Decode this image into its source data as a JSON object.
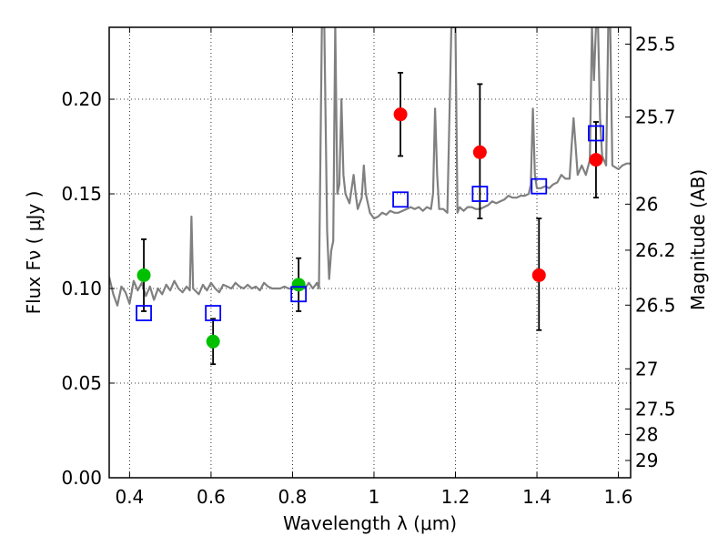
{
  "chart_data": {
    "type": "scatter",
    "xlabel": "Wavelength  λ (μm)",
    "ylabel": "Flux  Fν  ( μJy )",
    "ylabel_right": "Magnitude (AB)",
    "xlim": [
      0.35,
      1.63
    ],
    "ylim": [
      0.0,
      0.238
    ],
    "grid": true,
    "x_ticks": [
      {
        "value": 0.4,
        "label": "0.4"
      },
      {
        "value": 0.6,
        "label": "0.6"
      },
      {
        "value": 0.8,
        "label": "0.8"
      },
      {
        "value": 1.0,
        "label": "1"
      },
      {
        "value": 1.2,
        "label": "1.2"
      },
      {
        "value": 1.4,
        "label": "1.4"
      },
      {
        "value": 1.6,
        "label": "1.6"
      }
    ],
    "y_ticks": [
      {
        "value": 0.0,
        "label": "0.00"
      },
      {
        "value": 0.05,
        "label": "0.05"
      },
      {
        "value": 0.1,
        "label": "0.10"
      },
      {
        "value": 0.15,
        "label": "0.15"
      },
      {
        "value": 0.2,
        "label": "0.20"
      }
    ],
    "mag_ticks": [
      {
        "value": 25.5,
        "label": "25.5"
      },
      {
        "value": 25.7,
        "label": "25.7"
      },
      {
        "value": 26.0,
        "label": "26"
      },
      {
        "value": 26.2,
        "label": "26.2"
      },
      {
        "value": 26.5,
        "label": "26.5"
      },
      {
        "value": 27.0,
        "label": "27"
      },
      {
        "value": 27.5,
        "label": "27.5"
      },
      {
        "value": 28.0,
        "label": "28"
      },
      {
        "value": 29.0,
        "label": "29"
      }
    ],
    "series": [
      {
        "kind": "line",
        "color": "#808080",
        "points": [
          [
            0.35,
            0.106
          ],
          [
            0.36,
            0.097
          ],
          [
            0.37,
            0.091
          ],
          [
            0.38,
            0.101
          ],
          [
            0.39,
            0.098
          ],
          [
            0.4,
            0.092
          ],
          [
            0.41,
            0.104
          ],
          [
            0.42,
            0.099
          ],
          [
            0.43,
            0.103
          ],
          [
            0.44,
            0.096
          ],
          [
            0.45,
            0.101
          ],
          [
            0.46,
            0.094
          ],
          [
            0.47,
            0.1
          ],
          [
            0.48,
            0.097
          ],
          [
            0.49,
            0.102
          ],
          [
            0.5,
            0.099
          ],
          [
            0.51,
            0.104
          ],
          [
            0.52,
            0.1
          ],
          [
            0.53,
            0.098
          ],
          [
            0.54,
            0.101
          ],
          [
            0.548,
            0.099
          ],
          [
            0.552,
            0.138
          ],
          [
            0.556,
            0.1
          ],
          [
            0.57,
            0.097
          ],
          [
            0.58,
            0.102
          ],
          [
            0.59,
            0.099
          ],
          [
            0.6,
            0.103
          ],
          [
            0.61,
            0.1
          ],
          [
            0.62,
            0.098
          ],
          [
            0.63,
            0.102
          ],
          [
            0.64,
            0.101
          ],
          [
            0.65,
            0.1
          ],
          [
            0.66,
            0.103
          ],
          [
            0.67,
            0.101
          ],
          [
            0.68,
            0.1
          ],
          [
            0.69,
            0.102
          ],
          [
            0.7,
            0.1
          ],
          [
            0.71,
            0.101
          ],
          [
            0.72,
            0.099
          ],
          [
            0.73,
            0.103
          ],
          [
            0.74,
            0.101
          ],
          [
            0.75,
            0.1
          ],
          [
            0.76,
            0.1
          ],
          [
            0.77,
            0.1
          ],
          [
            0.78,
            0.101
          ],
          [
            0.79,
            0.1
          ],
          [
            0.8,
            0.1
          ],
          [
            0.81,
            0.1
          ],
          [
            0.82,
            0.1
          ],
          [
            0.83,
            0.1
          ],
          [
            0.84,
            0.103
          ],
          [
            0.85,
            0.1
          ],
          [
            0.86,
            0.103
          ],
          [
            0.865,
            0.1
          ],
          [
            0.872,
            0.238
          ],
          [
            0.878,
            0.238
          ],
          [
            0.885,
            0.13
          ],
          [
            0.89,
            0.105
          ],
          [
            0.895,
            0.12
          ],
          [
            0.9,
            0.125
          ],
          [
            0.905,
            0.24
          ],
          [
            0.91,
            0.15
          ],
          [
            0.915,
            0.155
          ],
          [
            0.92,
            0.2
          ],
          [
            0.925,
            0.16
          ],
          [
            0.93,
            0.15
          ],
          [
            0.94,
            0.145
          ],
          [
            0.95,
            0.16
          ],
          [
            0.955,
            0.15
          ],
          [
            0.96,
            0.142
          ],
          [
            0.97,
            0.148
          ],
          [
            0.975,
            0.165
          ],
          [
            0.98,
            0.15
          ],
          [
            0.99,
            0.14
          ],
          [
            1.0,
            0.137
          ],
          [
            1.01,
            0.138
          ],
          [
            1.02,
            0.14
          ],
          [
            1.03,
            0.139
          ],
          [
            1.04,
            0.141
          ],
          [
            1.05,
            0.14
          ],
          [
            1.06,
            0.14
          ],
          [
            1.07,
            0.141
          ],
          [
            1.08,
            0.142
          ],
          [
            1.09,
            0.143
          ],
          [
            1.1,
            0.142
          ],
          [
            1.11,
            0.143
          ],
          [
            1.12,
            0.141
          ],
          [
            1.13,
            0.143
          ],
          [
            1.14,
            0.142
          ],
          [
            1.145,
            0.15
          ],
          [
            1.15,
            0.195
          ],
          [
            1.155,
            0.16
          ],
          [
            1.16,
            0.142
          ],
          [
            1.17,
            0.142
          ],
          [
            1.18,
            0.14
          ],
          [
            1.19,
            0.238
          ],
          [
            1.2,
            0.238
          ],
          [
            1.205,
            0.14
          ],
          [
            1.21,
            0.143
          ],
          [
            1.22,
            0.141
          ],
          [
            1.23,
            0.143
          ],
          [
            1.24,
            0.143
          ],
          [
            1.25,
            0.142
          ],
          [
            1.26,
            0.142
          ],
          [
            1.27,
            0.143
          ],
          [
            1.28,
            0.144
          ],
          [
            1.29,
            0.146
          ],
          [
            1.3,
            0.145
          ],
          [
            1.31,
            0.146
          ],
          [
            1.32,
            0.147
          ],
          [
            1.33,
            0.149
          ],
          [
            1.34,
            0.148
          ],
          [
            1.35,
            0.148
          ],
          [
            1.36,
            0.149
          ],
          [
            1.37,
            0.149
          ],
          [
            1.38,
            0.15
          ],
          [
            1.385,
            0.155
          ],
          [
            1.39,
            0.195
          ],
          [
            1.395,
            0.16
          ],
          [
            1.4,
            0.153
          ],
          [
            1.41,
            0.153
          ],
          [
            1.42,
            0.154
          ],
          [
            1.43,
            0.153
          ],
          [
            1.44,
            0.155
          ],
          [
            1.45,
            0.156
          ],
          [
            1.46,
            0.16
          ],
          [
            1.47,
            0.158
          ],
          [
            1.48,
            0.158
          ],
          [
            1.485,
            0.175
          ],
          [
            1.49,
            0.19
          ],
          [
            1.495,
            0.175
          ],
          [
            1.5,
            0.16
          ],
          [
            1.51,
            0.165
          ],
          [
            1.52,
            0.16
          ],
          [
            1.53,
            0.168
          ],
          [
            1.535,
            0.238
          ],
          [
            1.54,
            0.21
          ],
          [
            1.545,
            0.238
          ],
          [
            1.55,
            0.238
          ],
          [
            1.555,
            0.19
          ],
          [
            1.56,
            0.17
          ],
          [
            1.57,
            0.165
          ],
          [
            1.575,
            0.238
          ],
          [
            1.58,
            0.238
          ],
          [
            1.585,
            0.165
          ],
          [
            1.6,
            0.163
          ],
          [
            1.61,
            0.165
          ],
          [
            1.62,
            0.166
          ],
          [
            1.63,
            0.166
          ]
        ]
      },
      {
        "kind": "points",
        "marker": "circle",
        "color": "#00c000",
        "points": [
          {
            "x": 0.435,
            "y": 0.107,
            "lo": 0.088,
            "hi": 0.126
          },
          {
            "x": 0.605,
            "y": 0.072,
            "lo": 0.06,
            "hi": 0.084
          },
          {
            "x": 0.815,
            "y": 0.102,
            "lo": 0.088,
            "hi": 0.116
          }
        ]
      },
      {
        "kind": "points",
        "marker": "circle",
        "color": "#ff0000",
        "points": [
          {
            "x": 1.065,
            "y": 0.192,
            "lo": 0.17,
            "hi": 0.214
          },
          {
            "x": 1.26,
            "y": 0.172,
            "lo": 0.137,
            "hi": 0.208
          },
          {
            "x": 1.405,
            "y": 0.107,
            "lo": 0.078,
            "hi": 0.137
          },
          {
            "x": 1.545,
            "y": 0.168,
            "lo": 0.148,
            "hi": 0.188
          }
        ]
      },
      {
        "kind": "points",
        "marker": "square",
        "color": "#0000ff",
        "points": [
          {
            "x": 0.435,
            "y": 0.087
          },
          {
            "x": 0.605,
            "y": 0.087
          },
          {
            "x": 0.815,
            "y": 0.097
          },
          {
            "x": 1.065,
            "y": 0.147
          },
          {
            "x": 1.26,
            "y": 0.15
          },
          {
            "x": 1.405,
            "y": 0.154
          },
          {
            "x": 1.545,
            "y": 0.182
          }
        ]
      }
    ]
  }
}
